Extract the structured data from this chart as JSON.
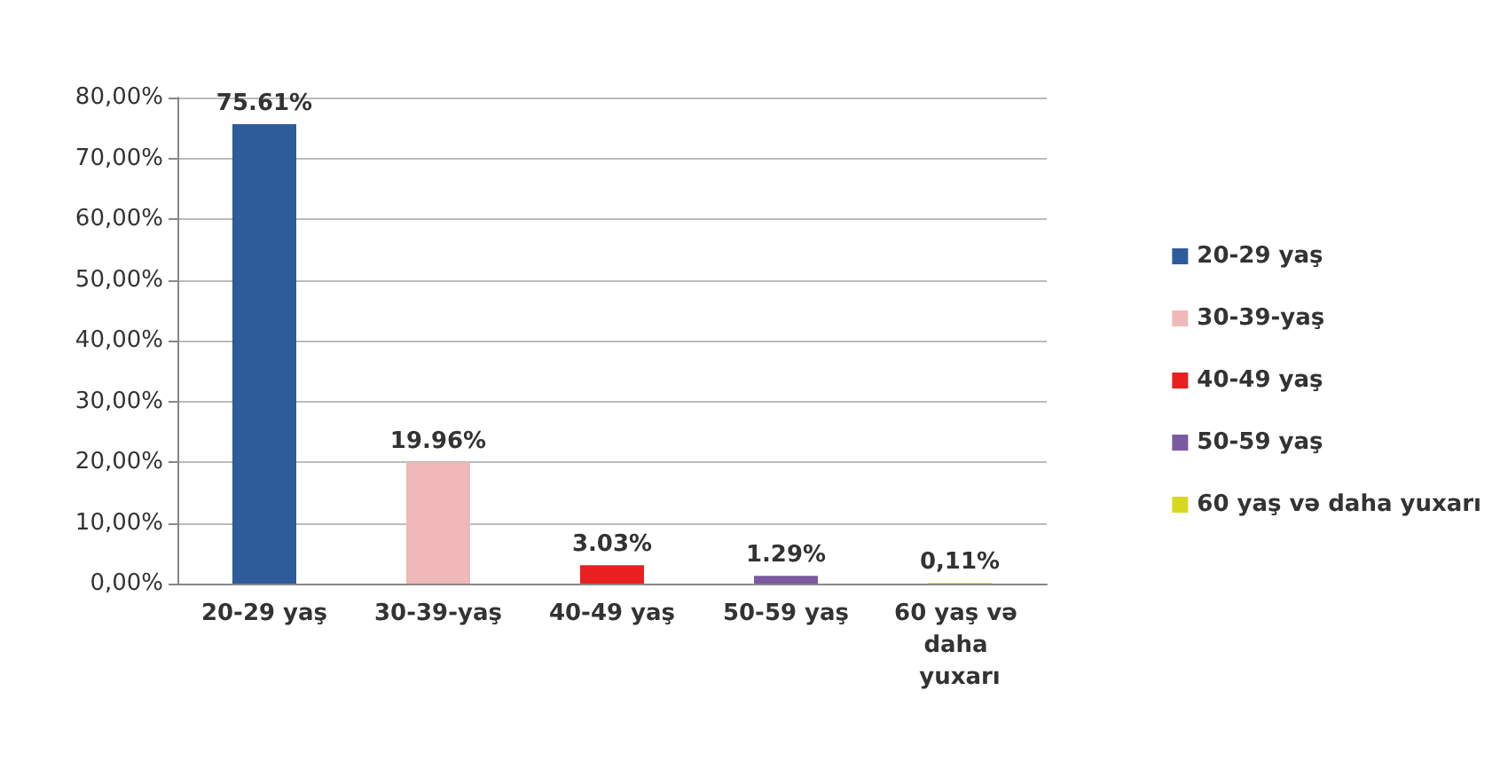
{
  "chart_data": {
    "type": "bar",
    "stacked": true,
    "categories": [
      "20-29 yaş",
      "30-39-yaş",
      "40-49 yaş",
      "50-59 yaş",
      "60 yaş və daha yuxarı"
    ],
    "series": [
      {
        "name": "20-29 yaş",
        "color": "#2e5b9a",
        "values": [
          75.61,
          null,
          null,
          null,
          null
        ],
        "value_labels": [
          "75.61%",
          null,
          null,
          null,
          null
        ]
      },
      {
        "name": "30-39-yaş",
        "color": "#f0b8b8",
        "values": [
          null,
          19.96,
          null,
          null,
          null
        ],
        "value_labels": [
          null,
          "19.96%",
          null,
          null,
          null
        ]
      },
      {
        "name": "40-49 yaş",
        "color": "#e82020",
        "values": [
          null,
          null,
          3.03,
          null,
          null
        ],
        "value_labels": [
          null,
          null,
          "3.03%",
          null,
          null
        ]
      },
      {
        "name": "50-59 yaş",
        "color": "#7a5aa0",
        "values": [
          null,
          null,
          null,
          1.29,
          null
        ],
        "value_labels": [
          null,
          null,
          null,
          "1.29%",
          null
        ]
      },
      {
        "name": "60 yaş və daha yuxarı",
        "color": "#d8d820",
        "values": [
          null,
          null,
          null,
          null,
          0.11
        ],
        "value_labels": [
          null,
          null,
          null,
          null,
          "0,11%"
        ]
      }
    ],
    "ylim": [
      0,
      80
    ],
    "yticks": [
      {
        "value": 0,
        "label": "0,00%"
      },
      {
        "value": 10,
        "label": "10,00%"
      },
      {
        "value": 20,
        "label": "20,00%"
      },
      {
        "value": 30,
        "label": "30,00%"
      },
      {
        "value": 40,
        "label": "40,00%"
      },
      {
        "value": 50,
        "label": "50,00%"
      },
      {
        "value": 60,
        "label": "60,00%"
      },
      {
        "value": 70,
        "label": "70,00%"
      },
      {
        "value": 80,
        "label": "80,00%"
      }
    ],
    "grid": "y",
    "legend": "right"
  }
}
